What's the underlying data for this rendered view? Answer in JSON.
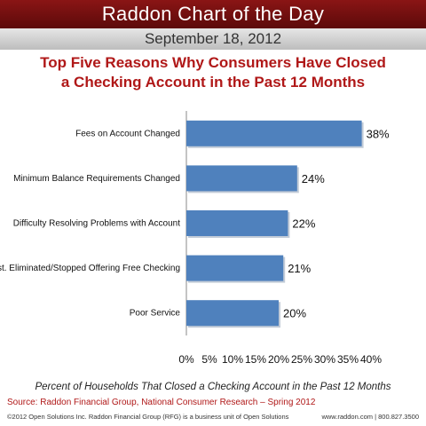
{
  "header": {
    "banner_title": "Raddon Chart of the Day",
    "date": "September 18, 2012"
  },
  "chart_title_line1": "Top Five Reasons Why Consumers Have Closed",
  "chart_title_line2": "a Checking Account in the Past 12 Months",
  "chart_data": {
    "type": "bar",
    "orientation": "horizontal",
    "title": "Top Five Reasons Why Consumers Have Closed a Checking Account in the Past 12 Months",
    "xlabel": "Percent of Households That Closed a Checking Account in the Past 12 Months",
    "ylabel": "",
    "categories": [
      "Fees on Account Changed",
      "Minimum Balance Requirements Changed",
      "Difficulty Resolving Problems with Account",
      "Inst. Eliminated/Stopped Offering Free Checking",
      "Poor Service"
    ],
    "values": [
      38,
      24,
      22,
      21,
      20
    ],
    "data_labels": [
      "38%",
      "24%",
      "22%",
      "21%",
      "20%"
    ],
    "xlim": [
      0,
      40
    ],
    "xticks": [
      "0%",
      "5%",
      "10%",
      "15%",
      "20%",
      "25%",
      "30%",
      "35%",
      "40%"
    ],
    "grid": false,
    "legend": "none",
    "bar_color": "#4f81bd"
  },
  "source": "Source: Raddon Financial Group, National Consumer Research – Spring 2012",
  "footer": {
    "copyright": "©2012 Open Solutions Inc.  Raddon Financial Group (RFG) is a business unit of Open Solutions",
    "contact": "www.raddon.com  |  800.827.3500"
  }
}
